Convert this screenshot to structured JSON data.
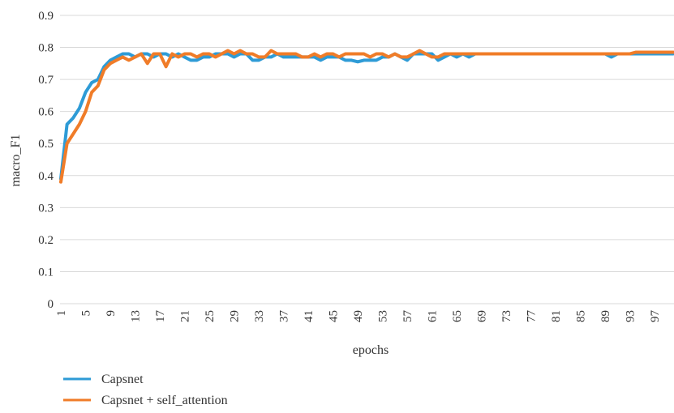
{
  "chart_data": {
    "type": "line",
    "xlabel": "epochs",
    "ylabel": "macro_F1",
    "ylim": [
      0,
      0.9
    ],
    "y_ticks": [
      "0",
      "0.1",
      "0.2",
      "0.3",
      "0.4",
      "0.5",
      "0.6",
      "0.7",
      "0.8",
      "0.9"
    ],
    "x_ticks": [
      "1",
      "5",
      "9",
      "13",
      "17",
      "21",
      "25",
      "29",
      "33",
      "37",
      "41",
      "45",
      "49",
      "53",
      "57",
      "61",
      "65",
      "69",
      "73",
      "77",
      "81",
      "85",
      "89",
      "93",
      "97"
    ],
    "x_range": [
      1,
      100
    ],
    "grid": "horizontal",
    "legend_position": "bottom-left",
    "series": [
      {
        "name": "Capsnet",
        "color": "#2e9bd6",
        "values": [
          0.39,
          0.56,
          0.58,
          0.61,
          0.66,
          0.69,
          0.7,
          0.74,
          0.76,
          0.77,
          0.78,
          0.78,
          0.77,
          0.78,
          0.78,
          0.77,
          0.78,
          0.78,
          0.77,
          0.78,
          0.77,
          0.76,
          0.76,
          0.77,
          0.77,
          0.78,
          0.78,
          0.78,
          0.77,
          0.78,
          0.78,
          0.76,
          0.76,
          0.77,
          0.77,
          0.78,
          0.77,
          0.77,
          0.77,
          0.77,
          0.77,
          0.77,
          0.76,
          0.77,
          0.77,
          0.77,
          0.76,
          0.76,
          0.755,
          0.76,
          0.76,
          0.76,
          0.77,
          0.77,
          0.78,
          0.77,
          0.76,
          0.78,
          0.78,
          0.78,
          0.78,
          0.76,
          0.77,
          0.78,
          0.77,
          0.78,
          0.77,
          0.78,
          0.78,
          0.78,
          0.78,
          0.78,
          0.78,
          0.78,
          0.78,
          0.78,
          0.78,
          0.78,
          0.78,
          0.78,
          0.78,
          0.78,
          0.78,
          0.78,
          0.78,
          0.78,
          0.78,
          0.78,
          0.78,
          0.77,
          0.78,
          0.78,
          0.78,
          0.78,
          0.78,
          0.78,
          0.78,
          0.78,
          0.78,
          0.78
        ]
      },
      {
        "name": "Capsnet + self_attention",
        "color": "#f07c28",
        "values": [
          0.38,
          0.5,
          0.53,
          0.56,
          0.6,
          0.66,
          0.68,
          0.73,
          0.75,
          0.76,
          0.77,
          0.76,
          0.77,
          0.78,
          0.75,
          0.78,
          0.78,
          0.74,
          0.78,
          0.77,
          0.78,
          0.78,
          0.77,
          0.78,
          0.78,
          0.77,
          0.78,
          0.79,
          0.78,
          0.79,
          0.78,
          0.78,
          0.77,
          0.77,
          0.79,
          0.78,
          0.78,
          0.78,
          0.78,
          0.77,
          0.77,
          0.78,
          0.77,
          0.78,
          0.78,
          0.77,
          0.78,
          0.78,
          0.78,
          0.78,
          0.77,
          0.78,
          0.78,
          0.77,
          0.78,
          0.77,
          0.77,
          0.78,
          0.79,
          0.78,
          0.77,
          0.77,
          0.78,
          0.78,
          0.78,
          0.78,
          0.78,
          0.78,
          0.78,
          0.78,
          0.78,
          0.78,
          0.78,
          0.78,
          0.78,
          0.78,
          0.78,
          0.78,
          0.78,
          0.78,
          0.78,
          0.78,
          0.78,
          0.78,
          0.78,
          0.78,
          0.78,
          0.78,
          0.78,
          0.78,
          0.78,
          0.78,
          0.78,
          0.785,
          0.785,
          0.785,
          0.785,
          0.785,
          0.785,
          0.785
        ]
      }
    ]
  }
}
